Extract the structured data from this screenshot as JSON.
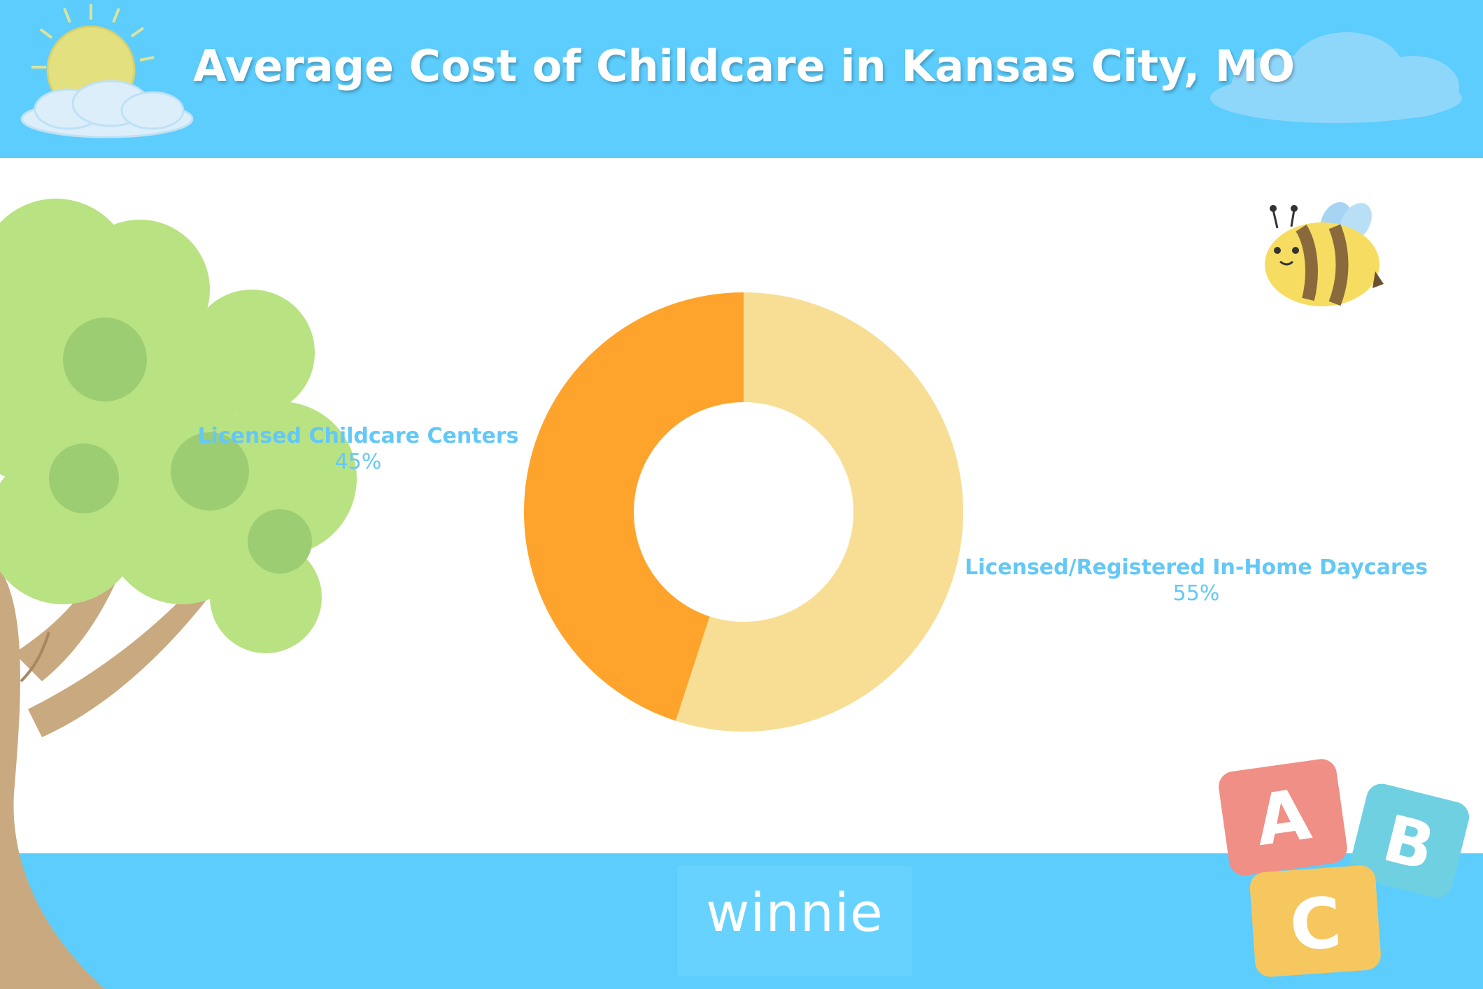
{
  "header": {
    "title": "Average Cost of Childcare in Kansas City, MO"
  },
  "footer": {
    "brand": "winnie"
  },
  "decorations": {
    "icons": [
      "sun-icon",
      "cloud-icon",
      "tree-icon",
      "bee-icon",
      "abc-blocks-icon"
    ],
    "block_letters": [
      "A",
      "B",
      "C"
    ]
  },
  "colors": {
    "header_bg": "#5ccdfd",
    "label_text": "#63c8f6",
    "slice_centers": "#fea42c",
    "slice_inhome": "#f8de95"
  },
  "chart_data": {
    "type": "pie",
    "donut": true,
    "title": "Average Cost of Childcare in Kansas City, MO",
    "categories": [
      "Licensed Childcare Centers",
      "Licensed/Registered In-Home Daycares"
    ],
    "values": [
      45,
      55
    ],
    "value_labels": [
      "45%",
      "55%"
    ],
    "colors": [
      "#fea42c",
      "#f8de95"
    ]
  }
}
